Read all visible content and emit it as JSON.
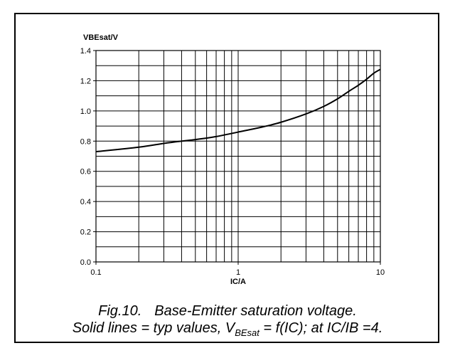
{
  "chart_data": {
    "type": "line",
    "xscale": "log",
    "xlim": [
      0.1,
      10
    ],
    "ylim": [
      0.0,
      1.4
    ],
    "xticks": [
      0.1,
      1,
      10
    ],
    "xtick_labels": [
      "0.1",
      "1",
      "10"
    ],
    "yticks": [
      0.0,
      0.2,
      0.4,
      0.6,
      0.8,
      1.0,
      1.2,
      1.4
    ],
    "ytick_labels": [
      "0.0",
      "0.2",
      "0.4",
      "0.6",
      "0.8",
      "1.0",
      "1.2",
      "1.4"
    ],
    "ylabel": "VBEsat/V",
    "xlabel": "IC/A",
    "grid": true,
    "legend": "none",
    "series": [
      {
        "x": [
          0.1,
          0.2,
          0.3,
          0.4,
          0.5,
          0.7,
          1.0,
          1.5,
          2.0,
          3.0,
          4.0,
          5.0,
          6.0,
          7.0,
          8.0,
          9.0,
          10.0
        ],
        "y": [
          0.73,
          0.76,
          0.785,
          0.8,
          0.81,
          0.83,
          0.86,
          0.895,
          0.925,
          0.98,
          1.03,
          1.08,
          1.13,
          1.17,
          1.21,
          1.25,
          1.275
        ]
      }
    ]
  },
  "caption": {
    "fig_label": "Fig.10.",
    "title": "Base-Emitter saturation voltage.",
    "note_prefix": "Solid lines = typ values, V",
    "note_sub": "BEsat",
    "note_suffix": " = f(IC); at IC/IB =4."
  }
}
